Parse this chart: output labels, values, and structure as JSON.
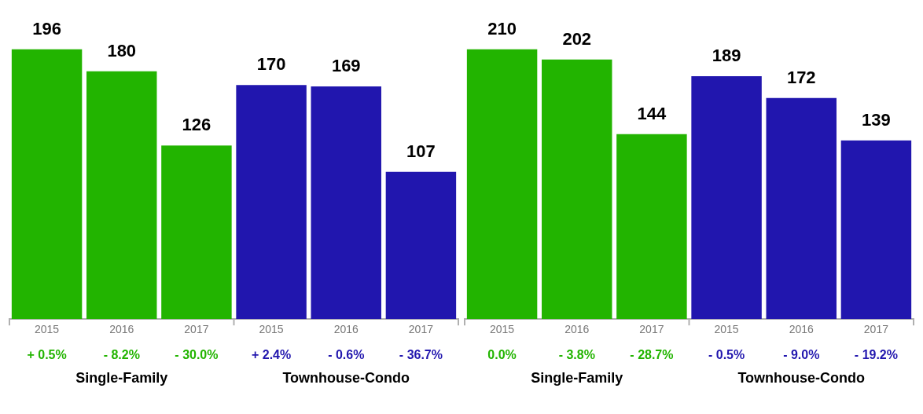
{
  "chart_data": [
    {
      "type": "bar",
      "categories": [
        "2015",
        "2016",
        "2017",
        "2015",
        "2016",
        "2017"
      ],
      "series": [
        {
          "color": "#22b400",
          "values": [
            196,
            180,
            126,
            null,
            null,
            null
          ]
        },
        {
          "color": "#2116ae",
          "values": [
            null,
            null,
            null,
            170,
            169,
            107
          ]
        }
      ],
      "annotations": [
        "+ 0.5%",
        "- 8.2%",
        "- 30.0%",
        "+ 2.4%",
        "- 0.6%",
        "- 36.7%",
        "Single-Family",
        "Townhouse-Condo"
      ],
      "data_labels": true,
      "tick_labels": "x",
      "grid": false,
      "legend": false
    },
    {
      "type": "bar",
      "categories": [
        "2015",
        "2016",
        "2017",
        "2015",
        "2016",
        "2017"
      ],
      "series": [
        {
          "color": "#22b400",
          "values": [
            210,
            202,
            144,
            null,
            null,
            null
          ]
        },
        {
          "color": "#2116ae",
          "values": [
            null,
            null,
            null,
            189,
            172,
            139
          ]
        }
      ],
      "annotations": [
        "0.0%",
        "- 3.8%",
        "- 28.7%",
        "- 0.5%",
        "- 9.0%",
        "- 19.2%",
        "Single-Family",
        "Townhouse-Condo"
      ],
      "data_labels": true,
      "tick_labels": "x",
      "grid": false,
      "legend": false
    }
  ]
}
